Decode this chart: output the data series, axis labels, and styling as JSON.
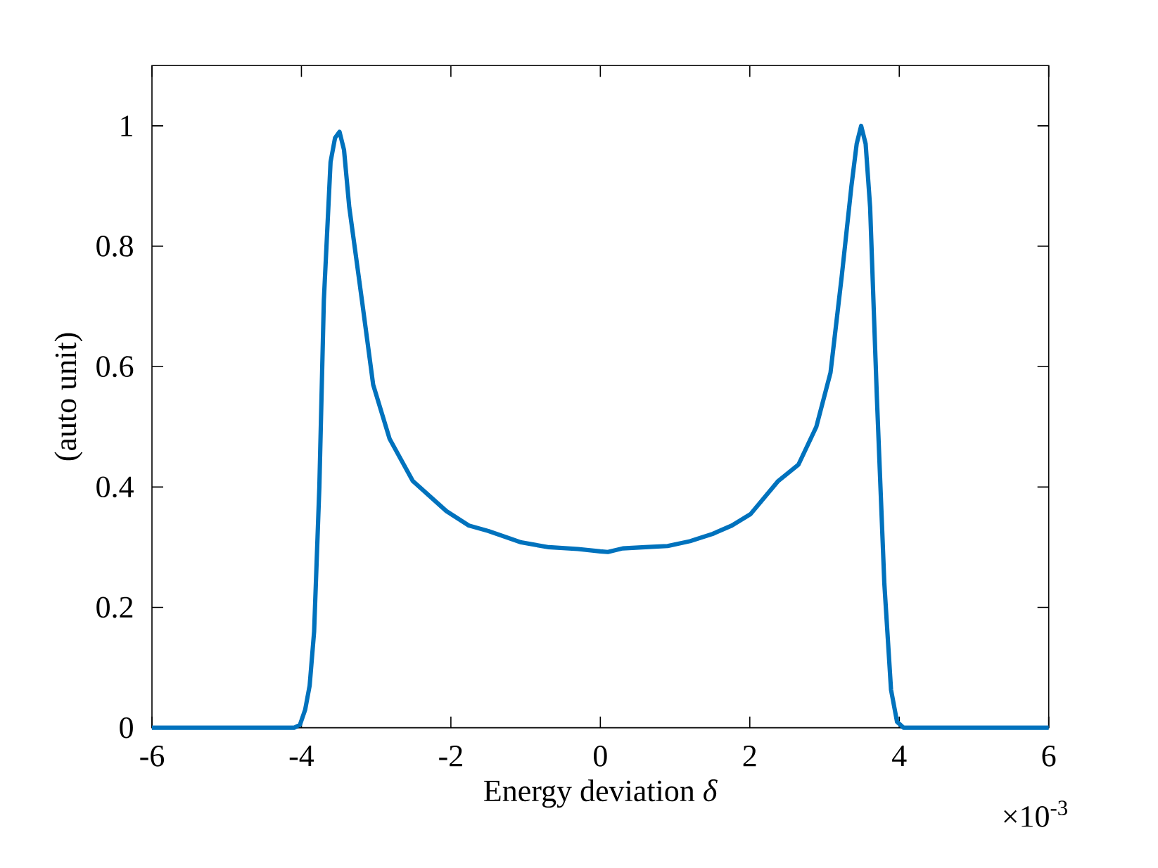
{
  "chart_data": {
    "type": "line",
    "xlabel": "Energy deviation *δ*",
    "ylabel": "(auto unit)",
    "annotations": [
      "×10$^{-3}$"
    ],
    "xlim": [
      -6,
      6
    ],
    "ylim": [
      0,
      1.1
    ],
    "xticks": [
      -6,
      -4,
      -2,
      0,
      2,
      4,
      6
    ],
    "yticks": [
      0,
      0.2,
      0.4,
      0.6,
      0.8,
      1
    ],
    "line_style": "solid",
    "marker": "none",
    "series": [
      {
        "color": "#0072bd",
        "x": [
          -6,
          -5,
          -4.5,
          -4.1,
          -4.02,
          -3.95,
          -3.89,
          -3.83,
          -3.76,
          -3.7,
          -3.61,
          -3.55,
          -3.49,
          -3.43,
          -3.36,
          -3.19,
          -3.04,
          -2.82,
          -2.51,
          -2.06,
          -1.76,
          -1.5,
          -1.06,
          -0.69,
          -0.3,
          0,
          0.1,
          0.3,
          0.6,
          0.9,
          1.2,
          1.5,
          1.76,
          2.01,
          2.38,
          2.65,
          2.89,
          3.08,
          3.23,
          3.36,
          3.43,
          3.49,
          3.55,
          3.61,
          3.7,
          3.8,
          3.89,
          3.97,
          4.06,
          4.5,
          5,
          6
        ],
        "values": [
          0,
          0,
          0,
          0,
          0.005,
          0.03,
          0.07,
          0.16,
          0.4,
          0.71,
          0.94,
          0.98,
          0.99,
          0.96,
          0.865,
          0.71,
          0.57,
          0.48,
          0.41,
          0.36,
          0.336,
          0.327,
          0.308,
          0.3,
          0.297,
          0.293,
          0.292,
          0.298,
          0.3,
          0.302,
          0.31,
          0.322,
          0.336,
          0.355,
          0.41,
          0.437,
          0.5,
          0.59,
          0.75,
          0.9,
          0.97,
          1.0,
          0.97,
          0.865,
          0.55,
          0.24,
          0.063,
          0.01,
          0,
          0,
          0,
          0
        ]
      }
    ]
  }
}
